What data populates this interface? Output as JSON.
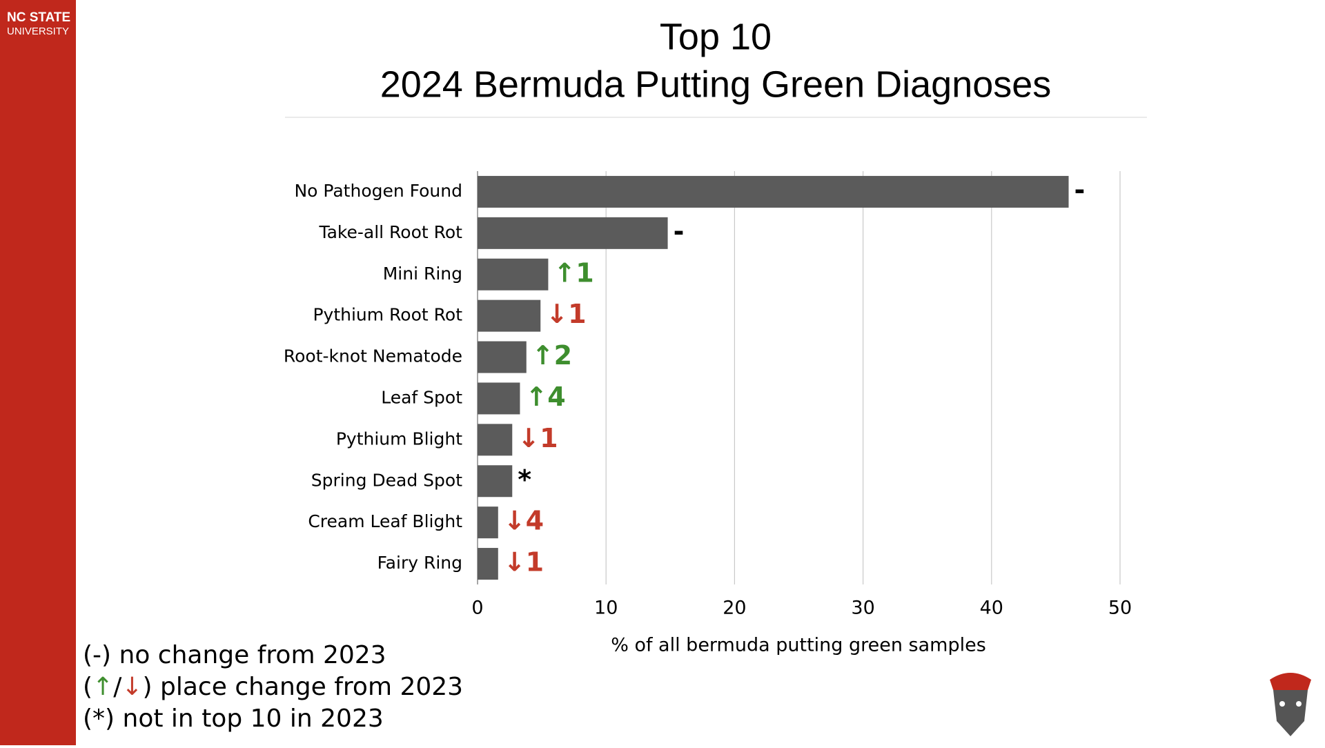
{
  "logo": {
    "line1": "NC STATE",
    "line2": "UNIVERSITY"
  },
  "chart_data": {
    "type": "hbar",
    "title": [
      "Top 10",
      "2024 Bermuda Putting Green Diagnoses"
    ],
    "categories": [
      "No Pathogen Found",
      "Take-all Root Rot",
      "Mini Ring",
      "Pythium Root Rot",
      "Root-knot Nematode",
      "Leaf Spot",
      "Pythium Blight",
      "Spring Dead Spot",
      "Cream Leaf Blight",
      "Fairy Ring"
    ],
    "values": [
      46.0,
      14.8,
      5.5,
      4.9,
      3.8,
      3.3,
      2.7,
      2.7,
      1.6,
      1.6
    ],
    "color": "#5b5b5b",
    "annotations": [
      {
        "text": "-",
        "color": "#000000"
      },
      {
        "text": "-",
        "color": "#000000"
      },
      {
        "text": "↑1",
        "color": "#3e8e2e"
      },
      {
        "text": "↓1",
        "color": "#c33b2a"
      },
      {
        "text": "↑2",
        "color": "#3e8e2e"
      },
      {
        "text": "↑4",
        "color": "#3e8e2e"
      },
      {
        "text": "↓1",
        "color": "#c33b2a"
      },
      {
        "text": "*",
        "color": "#000000"
      },
      {
        "text": "↓4",
        "color": "#c33b2a"
      },
      {
        "text": "↓1",
        "color": "#c33b2a"
      }
    ],
    "xlim": [
      0,
      50
    ],
    "xticks": [
      0,
      10,
      20,
      30,
      40,
      50
    ],
    "grid": true,
    "xlabel": "% of all bermuda putting green samples",
    "key": [
      [
        {
          "text": "(-) no change from 2023",
          "color": "#000000"
        }
      ],
      [
        {
          "text": "(",
          "color": "#000000"
        },
        {
          "text": "↑",
          "color": "#3e8e2e"
        },
        {
          "text": "/",
          "color": "#000000"
        },
        {
          "text": "↓",
          "color": "#c33b2a"
        },
        {
          "text": ") place change from 2023",
          "color": "#000000"
        }
      ],
      [
        {
          "text": "(*) not in top 10 in 2023",
          "color": "#000000"
        }
      ]
    ]
  }
}
